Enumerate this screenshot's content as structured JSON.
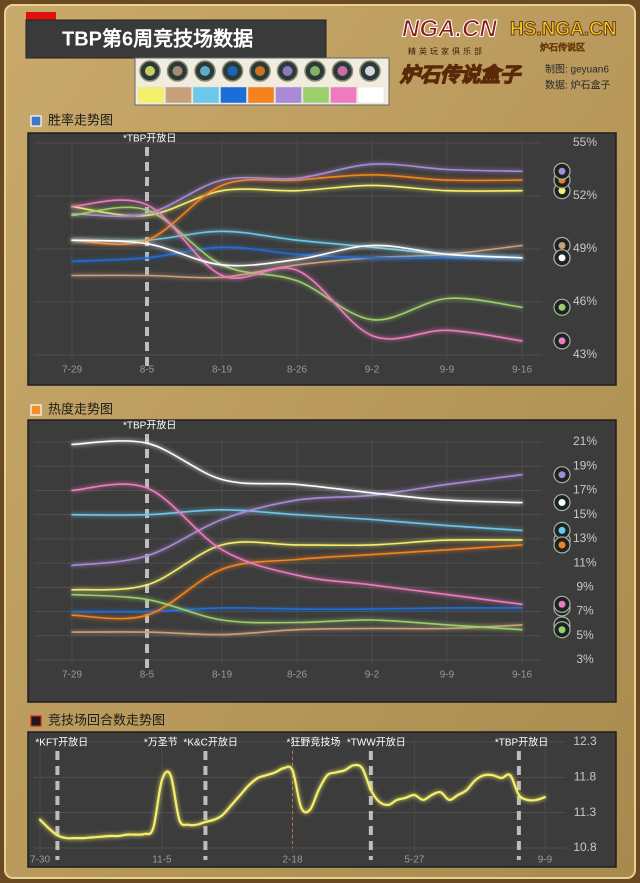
{
  "header": {
    "title": "TBP第6周竞技场数据",
    "logo_nga": "NGA.CN",
    "logo_nga_sub": "精英玩家俱乐部",
    "logo_hs": "HS.NGA.CN",
    "logo_hs_sub": "炉石传说区",
    "logo_box": "炉石传说盒子",
    "credit_author": "制图: geyuan6",
    "credit_data": "数据: 炉石盒子"
  },
  "chart_data": [
    {
      "type": "line",
      "title": "胜率走势图",
      "annotations": [
        "*TBP开放日"
      ],
      "categories": [
        "7-29",
        "8-5",
        "8-19",
        "8-26",
        "9-2",
        "9-9",
        "9-16"
      ],
      "ylim": [
        43,
        55
      ],
      "yticks": [
        {
          "value": 55,
          "label": "55%"
        },
        {
          "value": 52,
          "label": "52%"
        },
        {
          "value": 49,
          "label": "49%"
        },
        {
          "value": 46,
          "label": "46%"
        },
        {
          "value": 43,
          "label": "43%"
        }
      ],
      "grid": true,
      "series": [
        {
          "color": "#f5f06a",
          "values": [
            51.4,
            50.9,
            52.3,
            52.3,
            52.6,
            52.3,
            52.3
          ]
        },
        {
          "color": "#c8a07a",
          "values": [
            47.5,
            47.5,
            47.4,
            48.1,
            48.5,
            48.7,
            49.2
          ]
        },
        {
          "color": "#6cc8e8",
          "values": [
            49.5,
            49.5,
            50.0,
            49.5,
            49.1,
            48.7,
            48.5
          ]
        },
        {
          "color": "#1a6ed8",
          "values": [
            48.3,
            48.5,
            49.1,
            48.7,
            48.5,
            48.5,
            48.5
          ]
        },
        {
          "color": "#f5821e",
          "values": [
            49.5,
            49.5,
            52.6,
            52.9,
            53.2,
            52.9,
            52.9
          ]
        },
        {
          "color": "#a88ad8",
          "values": [
            51.0,
            51.0,
            52.9,
            53.0,
            53.8,
            53.5,
            53.4
          ]
        },
        {
          "color": "#9ccf6a",
          "values": [
            50.9,
            51.2,
            48.1,
            47.2,
            45.0,
            46.2,
            45.7
          ]
        },
        {
          "color": "#f07ac0",
          "values": [
            51.4,
            51.5,
            47.5,
            47.8,
            44.1,
            44.4,
            43.8
          ]
        },
        {
          "color": "#ffffff",
          "values": [
            49.5,
            49.3,
            48.1,
            48.4,
            49.2,
            48.7,
            48.5
          ]
        }
      ]
    },
    {
      "type": "line",
      "title": "热度走势图",
      "annotations": [
        "*TBP开放日"
      ],
      "categories": [
        "7-29",
        "8-5",
        "8-19",
        "8-26",
        "9-2",
        "9-9",
        "9-16"
      ],
      "ylim": [
        3,
        21
      ],
      "yticks": [
        {
          "value": 21,
          "label": "21%"
        },
        {
          "value": 19,
          "label": "19%"
        },
        {
          "value": 17,
          "label": "17%"
        },
        {
          "value": 15,
          "label": "15%"
        },
        {
          "value": 13,
          "label": "13%"
        },
        {
          "value": 11,
          "label": "11%"
        },
        {
          "value": 9,
          "label": "9%"
        },
        {
          "value": 7,
          "label": "7%"
        },
        {
          "value": 5,
          "label": "5%"
        },
        {
          "value": 3,
          "label": "3%"
        }
      ],
      "grid": true,
      "series": [
        {
          "color": "#f5f06a",
          "values": [
            8.8,
            9.2,
            12.5,
            12.5,
            12.5,
            12.9,
            12.9
          ]
        },
        {
          "color": "#c8a07a",
          "values": [
            5.3,
            5.3,
            5.1,
            5.5,
            5.6,
            5.6,
            5.9
          ]
        },
        {
          "color": "#6cc8e8",
          "values": [
            15.0,
            15.0,
            15.4,
            15.0,
            14.6,
            14.1,
            13.7
          ]
        },
        {
          "color": "#1a6ed8",
          "values": [
            7.0,
            7.0,
            7.3,
            7.2,
            7.2,
            7.3,
            7.3
          ]
        },
        {
          "color": "#f5821e",
          "values": [
            6.7,
            6.7,
            10.5,
            11.3,
            11.7,
            12.1,
            12.5
          ]
        },
        {
          "color": "#a88ad8",
          "values": [
            10.8,
            11.6,
            14.6,
            16.2,
            16.6,
            17.5,
            18.3
          ]
        },
        {
          "color": "#9ccf6a",
          "values": [
            8.4,
            8.0,
            6.3,
            6.1,
            6.3,
            5.9,
            5.5
          ]
        },
        {
          "color": "#f07ac0",
          "values": [
            17.0,
            17.2,
            12.1,
            10.0,
            9.2,
            8.4,
            7.6
          ]
        },
        {
          "color": "#ffffff",
          "values": [
            20.8,
            20.9,
            17.9,
            17.5,
            16.8,
            16.2,
            16.0
          ]
        }
      ]
    },
    {
      "type": "line",
      "title": "竞技场回合数走势图",
      "annotations": [
        "*KFT开放日",
        "*万圣节",
        "*K&C开放日",
        "*狂野竞技场",
        "*TWW开放日",
        "*TBP开放日"
      ],
      "categories": [
        "7-30",
        null,
        null,
        null,
        null,
        null,
        null,
        null,
        null,
        null,
        null,
        null,
        null,
        null,
        "11-5",
        null,
        null,
        null,
        null,
        null,
        null,
        null,
        null,
        null,
        null,
        null,
        null,
        null,
        null,
        "2-18",
        null,
        null,
        null,
        null,
        null,
        null,
        null,
        null,
        null,
        null,
        null,
        null,
        null,
        "5-27",
        null,
        null,
        null,
        null,
        null,
        null,
        null,
        null,
        null,
        null,
        null,
        null,
        null,
        null,
        "9-9"
      ],
      "ylim": [
        10.8,
        12.3
      ],
      "yticks": [
        12.3,
        11.8,
        11.3,
        10.8
      ],
      "grid": true,
      "series": [
        {
          "color": "#f5f06a",
          "values": [
            11.2,
            11.08,
            10.98,
            10.94,
            10.94,
            10.94,
            10.95,
            10.96,
            10.97,
            10.97,
            10.99,
            10.99,
            11.0,
            11.08,
            11.76,
            11.83,
            11.2,
            11.13,
            11.13,
            11.17,
            11.2,
            11.27,
            11.41,
            11.55,
            11.69,
            11.79,
            11.83,
            11.87,
            11.93,
            11.9,
            11.37,
            11.34,
            11.62,
            11.83,
            11.87,
            11.9,
            11.97,
            11.93,
            11.62,
            11.45,
            11.41,
            11.48,
            11.51,
            11.55,
            11.48,
            11.55,
            11.59,
            11.48,
            11.55,
            11.62,
            11.76,
            11.83,
            11.83,
            11.79,
            11.83,
            11.55,
            11.48,
            11.48,
            11.52
          ]
        }
      ]
    }
  ]
}
